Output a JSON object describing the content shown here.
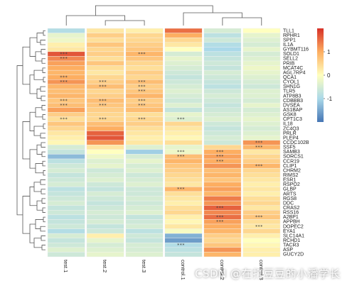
{
  "chart_data": {
    "type": "heatmap",
    "columns": [
      "test.1",
      "test.2",
      "test.3",
      "control.1",
      "control.2",
      "control.3"
    ],
    "rows": [
      "TLL1",
      "RPHR1",
      "SPP1",
      "IL1A",
      "GYBMT116",
      "SOLD1",
      "SELL2",
      "PRIB",
      "MCAT4C",
      "AGL7RP4",
      "QCA1",
      "CYOL1",
      "SHN1G",
      "TLR5",
      "ATP8B3",
      "CDBBB3",
      "DVSEA",
      "AS1BAP",
      "GSK8",
      "CPT1C3",
      "IL18",
      "ZC4Q3",
      "PRLR",
      "PLEP4",
      "CCDC102B",
      "SSF5",
      "SAMB3",
      "SORCS1",
      "CCR19",
      "CLIP1",
      "CHRM2",
      "RIMS2",
      "ESR1",
      "RSPO2",
      "GLBP",
      "ARTS",
      "RGS8",
      "DDC",
      "CRAS2",
      "RSS16",
      "A2BP1",
      "APPBH",
      "DOPEC2",
      "EYA1",
      "SLC14A1",
      "RCHD1",
      "TACR3",
      "ASP",
      "GUCY2D"
    ],
    "values": [
      [
        -0.9,
        0.3,
        0.2,
        1.5,
        -0.5,
        0.0
      ],
      [
        -0.3,
        0.6,
        0.5,
        1.0,
        -0.8,
        -0.3
      ],
      [
        -0.2,
        0.4,
        0.5,
        0.5,
        -0.6,
        -0.4
      ],
      [
        0.2,
        0.7,
        0.6,
        0.3,
        -0.9,
        -0.5
      ],
      [
        0.3,
        0.5,
        0.7,
        0.0,
        -1.0,
        -0.3
      ],
      [
        1.7,
        0.6,
        0.9,
        -0.5,
        -0.8,
        -0.5
      ],
      [
        1.3,
        0.4,
        0.7,
        -0.3,
        -0.7,
        -0.4
      ],
      [
        1.1,
        0.7,
        0.5,
        -0.4,
        -0.6,
        -0.3
      ],
      [
        1.0,
        0.4,
        0.4,
        -0.5,
        -0.7,
        -0.2
      ],
      [
        0.9,
        0.3,
        0.6,
        -0.6,
        -0.5,
        -0.3
      ],
      [
        1.0,
        0.5,
        0.5,
        -0.7,
        -0.6,
        -0.4
      ],
      [
        1.2,
        0.6,
        0.8,
        -0.6,
        -0.7,
        -0.5
      ],
      [
        0.9,
        0.8,
        0.6,
        -0.5,
        -0.8,
        -0.6
      ],
      [
        0.8,
        0.5,
        0.7,
        -0.4,
        -0.6,
        -0.4
      ],
      [
        0.9,
        0.6,
        0.9,
        -0.5,
        -0.5,
        -0.4
      ],
      [
        0.7,
        0.8,
        0.6,
        -0.6,
        -0.6,
        -0.5
      ],
      [
        0.8,
        0.7,
        0.7,
        -0.4,
        -0.7,
        -0.3
      ],
      [
        1.1,
        0.6,
        0.8,
        -0.7,
        -0.6,
        -0.5
      ],
      [
        0.6,
        0.5,
        0.4,
        -0.3,
        -0.5,
        -0.4
      ],
      [
        0.4,
        0.5,
        0.5,
        -0.4,
        -0.4,
        -0.3
      ],
      [
        0.7,
        0.8,
        0.6,
        0.5,
        -0.6,
        -0.4
      ],
      [
        0.5,
        1.0,
        0.4,
        0.3,
        -0.7,
        -0.5
      ],
      [
        0.3,
        1.6,
        0.3,
        0.2,
        -0.6,
        -0.4
      ],
      [
        0.2,
        1.7,
        0.2,
        0.1,
        -0.5,
        -0.3
      ],
      [
        0.1,
        1.2,
        0.3,
        0.4,
        -0.6,
        1.2
      ],
      [
        -0.5,
        0.3,
        -0.4,
        -0.3,
        0.5,
        0.9
      ],
      [
        -0.7,
        0.0,
        -1.1,
        -0.2,
        1.0,
        0.3
      ],
      [
        -1.3,
        -0.2,
        -0.5,
        0.8,
        1.1,
        0.5
      ],
      [
        -0.8,
        -0.4,
        -0.3,
        0.9,
        1.0,
        0.6
      ],
      [
        -0.6,
        -0.3,
        -0.5,
        0.7,
        1.2,
        0.9
      ],
      [
        -0.5,
        -0.6,
        -0.4,
        0.6,
        0.8,
        0.5
      ],
      [
        -0.7,
        -0.5,
        -0.6,
        0.5,
        0.9,
        0.4
      ],
      [
        -0.6,
        -0.4,
        -0.5,
        0.4,
        0.7,
        0.3
      ],
      [
        -0.5,
        -0.6,
        -0.4,
        0.3,
        1.0,
        0.2
      ],
      [
        -0.8,
        -0.7,
        -0.6,
        0.9,
        1.1,
        0.3
      ],
      [
        -0.7,
        -0.5,
        -0.6,
        0.4,
        0.9,
        0.2
      ],
      [
        -0.6,
        -0.6,
        -0.5,
        0.3,
        1.4,
        0.4
      ],
      [
        -0.5,
        -0.7,
        -0.6,
        0.2,
        1.2,
        0.5
      ],
      [
        -0.7,
        -0.6,
        -0.5,
        0.4,
        1.6,
        0.3
      ],
      [
        -0.6,
        -0.5,
        -0.4,
        0.5,
        1.3,
        0.6
      ],
      [
        -0.8,
        -0.6,
        -0.7,
        0.2,
        1.5,
        0.7
      ],
      [
        -0.7,
        -0.5,
        -0.6,
        0.1,
        1.1,
        0.4
      ],
      [
        -0.6,
        -0.7,
        -0.5,
        0.3,
        1.0,
        0.3
      ],
      [
        -0.9,
        -0.6,
        -0.8,
        -0.1,
        0.9,
        0.5
      ],
      [
        -0.5,
        0.2,
        -0.6,
        -1.4,
        0.6,
        0.2
      ],
      [
        -0.7,
        -0.3,
        -0.7,
        -1.6,
        0.5,
        0.0
      ],
      [
        -0.6,
        -0.5,
        -0.5,
        -0.9,
        0.7,
        0.1
      ],
      [
        -0.4,
        -0.4,
        -0.5,
        -0.8,
        1.2,
        0.2
      ],
      [
        -0.6,
        -0.3,
        -0.4,
        -0.7,
        0.9,
        0.2
      ]
    ],
    "significance": {
      "test.1": [
        5,
        6,
        10,
        11,
        15,
        16,
        19
      ],
      "test.2": [
        11,
        12,
        15,
        16,
        19
      ],
      "test.3": [
        5,
        11,
        12,
        13,
        15,
        16,
        19
      ],
      "control.1": [
        19,
        26,
        27,
        34,
        46
      ],
      "control.2": [
        26,
        27,
        28,
        38,
        40,
        41
      ],
      "control.3": [
        24,
        25,
        29,
        40,
        42
      ]
    },
    "star_label": "***",
    "legend_ticks": [
      1,
      0,
      -1
    ],
    "legend_range": [
      -2,
      2
    ],
    "colors": {
      "low": "#4575b4",
      "mid_low": "#abd9e9",
      "mid": "#ffffbf",
      "mid_high": "#fdae61",
      "high": "#d73027",
      "cell_border": "#f2f2f2",
      "dendrogram": "#555555"
    }
  },
  "watermark": "CSDN @在打豆豆的小潘学长"
}
